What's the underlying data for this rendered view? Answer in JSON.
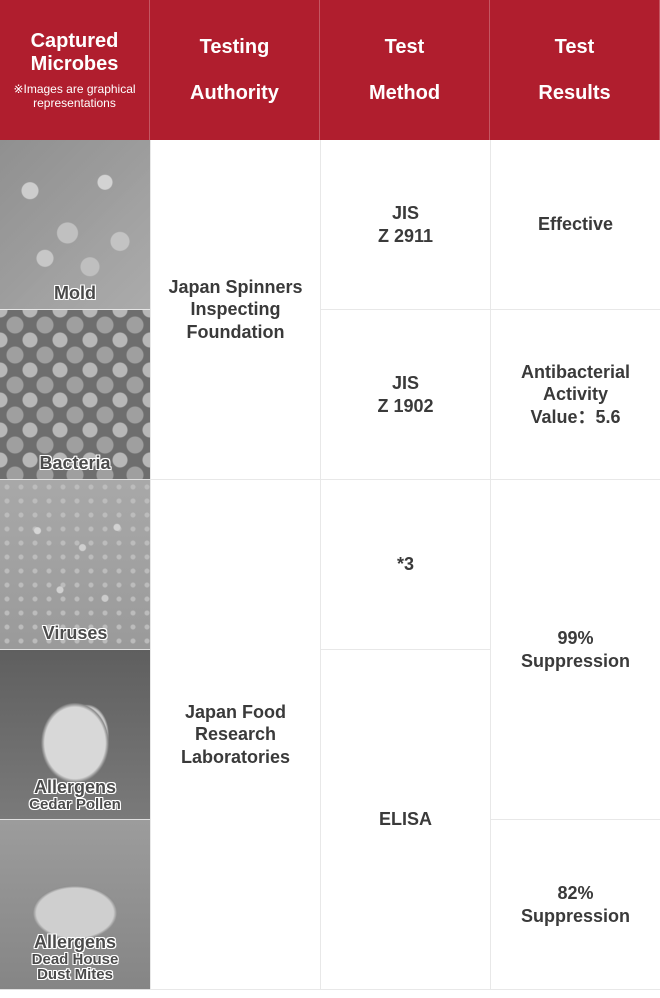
{
  "colors": {
    "header_bg": "#b01e2e",
    "header_text": "#ffffff",
    "label_text": "#d3262e",
    "cell_text": "#3a3a3a",
    "cell_border": "#e8e8e8"
  },
  "header": {
    "col1_line1": "Captured",
    "col1_line2": "Microbes",
    "col1_note": "※Images are graphical representations",
    "col2_line1": "Testing",
    "col2_line2": "Authority",
    "col3_line1": "Test",
    "col3_line2": "Method",
    "col4_line1": "Test",
    "col4_line2": "Results"
  },
  "microbes": {
    "mold": "Mold",
    "bacteria": "Bacteria",
    "viruses": "Viruses",
    "allergens": "Allergens",
    "cedar_pollen": "Cedar Pollen",
    "dust_mites_l1": "Dead House",
    "dust_mites_l2": "Dust Mites"
  },
  "authority": {
    "jsif": "Japan Spinners Inspecting Foundation",
    "jfrl": "Japan Food Research Laboratories"
  },
  "method": {
    "jis_z2911_l1": "JIS",
    "jis_z2911_l2": "Z 2911",
    "jis_z1902_l1": "JIS",
    "jis_z1902_l2": "Z 1902",
    "star3": "*3",
    "elisa": "ELISA"
  },
  "results": {
    "effective": "Effective",
    "antibacterial_l1": "Antibacterial",
    "antibacterial_l2": "Activity",
    "antibacterial_l3": "Value：5.6",
    "supp99_l1": "99%",
    "supp99_l2": "Suppression",
    "supp82_l1": "82%",
    "supp82_l2": "Suppression"
  }
}
